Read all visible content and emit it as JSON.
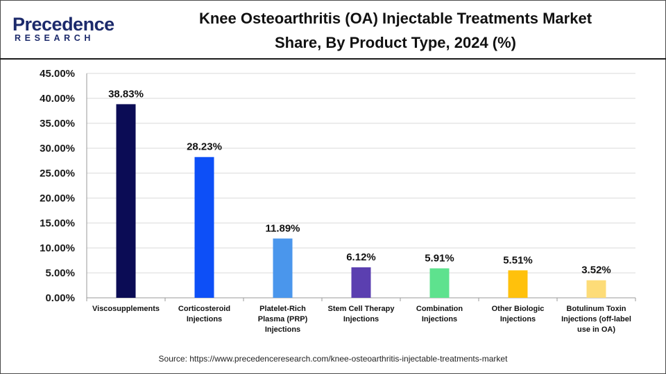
{
  "header": {
    "logo_main": "Precedence",
    "logo_sub": "RESEARCH",
    "title_line1": "Knee Osteoarthritis (OA) Injectable Treatments Market",
    "title_line2": "Share, By Product Type, 2024 (%)"
  },
  "footer": {
    "source": "Source: https://www.precedenceresearch.com/knee-osteoarthritis-injectable-treatments-market"
  },
  "chart_data": {
    "type": "bar",
    "title": "Knee Osteoarthritis (OA) Injectable Treatments Market Share, By Product Type, 2024 (%)",
    "categories": [
      [
        "Viscosupplements"
      ],
      [
        "Corticosteroid",
        "Injections"
      ],
      [
        "Platelet-Rich",
        "Plasma (PRP)",
        "Injections"
      ],
      [
        "Stem Cell Therapy",
        "Injections"
      ],
      [
        "Combination",
        "Injections"
      ],
      [
        "Other Biologic",
        "Injections"
      ],
      [
        "Botulinum Toxin",
        "Injections (off-label",
        "use in OA)"
      ]
    ],
    "values": [
      38.83,
      28.23,
      11.89,
      6.12,
      5.91,
      5.51,
      3.52
    ],
    "value_labels": [
      "38.83%",
      "28.23%",
      "11.89%",
      "6.12%",
      "5.91%",
      "5.51%",
      "3.52%"
    ],
    "colors": [
      "#0b0c55",
      "#0d4ff7",
      "#4a96ec",
      "#5b3fb0",
      "#5ee28e",
      "#ffc10c",
      "#fddc78"
    ],
    "yticks": [
      "0.00%",
      "5.00%",
      "10.00%",
      "15.00%",
      "20.00%",
      "25.00%",
      "30.00%",
      "35.00%",
      "40.00%",
      "45.00%"
    ],
    "ylim": [
      0,
      45
    ],
    "grid": true,
    "legend": "none"
  }
}
